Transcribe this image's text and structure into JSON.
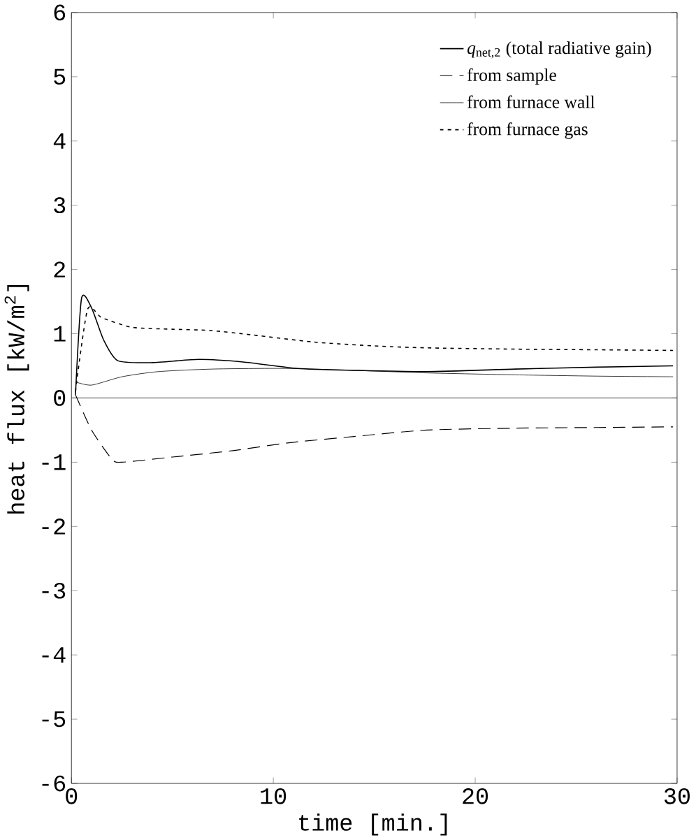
{
  "chart_data": {
    "type": "line",
    "xlabel": "time [min.]",
    "ylabel": "heat flux [kW/m$^{2}$]",
    "xlim": [
      0,
      30
    ],
    "ylim": [
      -6,
      6
    ],
    "xticks": [
      0,
      10,
      20,
      30
    ],
    "yticks": [
      -6,
      -5,
      -4,
      -3,
      -2,
      -1,
      0,
      1,
      2,
      3,
      4,
      5,
      6
    ],
    "legend": "top right",
    "grid": false,
    "ref_lines": [
      {
        "axis": "y",
        "value": 0,
        "color": "#000000"
      }
    ],
    "series": [
      {
        "name": "*q*$_{net,2}$ (total radiative gain)",
        "color": "#000000",
        "line_style": "solid",
        "x": [
          0.2,
          0.5,
          1.0,
          1.6,
          2.3,
          4,
          6.3,
          8.5,
          11.2,
          14,
          17.6,
          22,
          26,
          29.8
        ],
        "values": [
          0.05,
          1.55,
          1.4,
          0.9,
          0.58,
          0.55,
          0.6,
          0.56,
          0.46,
          0.43,
          0.41,
          0.45,
          0.48,
          0.5
        ]
      },
      {
        "name": "from sample",
        "color": "#000000",
        "line_style": "dashed",
        "x": [
          0.2,
          1.0,
          2.0,
          2.5,
          5,
          8,
          10.7,
          14,
          17.6,
          22,
          26,
          29.8
        ],
        "values": [
          0.05,
          -0.5,
          -0.95,
          -1.0,
          -0.92,
          -0.82,
          -0.7,
          -0.6,
          -0.5,
          -0.47,
          -0.46,
          -0.45
        ]
      },
      {
        "name": "from furnace wall",
        "color": "#000000",
        "line_style": "solid",
        "x": [
          0.2,
          1,
          2.5,
          4.3,
          7,
          10.6,
          14,
          17.6,
          22,
          26,
          29.8
        ],
        "values": [
          0.25,
          0.2,
          0.33,
          0.41,
          0.45,
          0.46,
          0.43,
          0.39,
          0.36,
          0.34,
          0.33
        ]
      },
      {
        "name": "from furnace gas",
        "color": "#000000",
        "line_style": "dotted",
        "x": [
          0.2,
          0.8,
          1.5,
          3,
          5,
          6.9,
          9,
          12,
          15,
          17.6,
          22,
          26,
          29.8
        ],
        "values": [
          0.1,
          1.38,
          1.25,
          1.1,
          1.07,
          1.05,
          0.98,
          0.87,
          0.81,
          0.78,
          0.76,
          0.75,
          0.74
        ]
      }
    ]
  }
}
